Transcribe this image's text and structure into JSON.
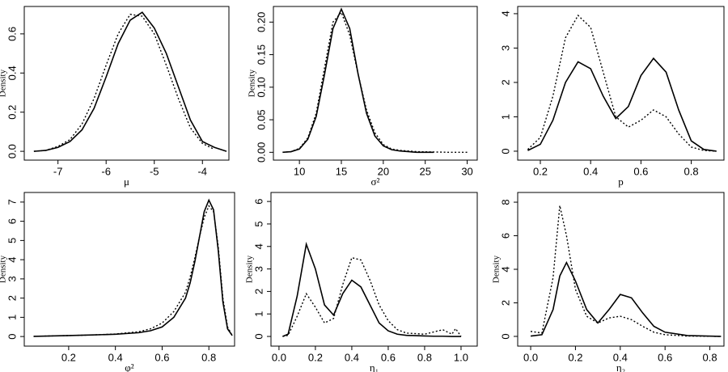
{
  "chart_data": [
    {
      "type": "line",
      "xlabel": "μ",
      "ylabel": "Density",
      "x": [
        -7.5,
        -7.25,
        -7,
        -6.75,
        -6.5,
        -6.25,
        -6,
        -5.75,
        -5.5,
        -5.25,
        -5,
        -4.75,
        -4.5,
        -4.25,
        -4,
        -3.75,
        -3.5
      ],
      "series": [
        {
          "color": "#000000",
          "dash": "solid",
          "values": [
            0,
            0.005,
            0.02,
            0.05,
            0.11,
            0.22,
            0.38,
            0.55,
            0.67,
            0.71,
            0.63,
            0.5,
            0.33,
            0.16,
            0.05,
            0.02,
            0.0
          ]
        },
        {
          "color": "#000000",
          "dash": "dotted",
          "values": [
            0,
            0.005,
            0.025,
            0.06,
            0.14,
            0.27,
            0.44,
            0.6,
            0.7,
            0.69,
            0.6,
            0.44,
            0.27,
            0.12,
            0.04,
            0.01,
            null
          ]
        }
      ],
      "xlim": [
        -7.7,
        -3.45
      ],
      "ylim": [
        -0.045,
        0.74
      ],
      "xticks": [
        -7,
        -6,
        -5,
        -4
      ],
      "yticks": [
        {
          "value": 0,
          "label": "0.0"
        },
        0.2,
        0.4,
        0.6
      ]
    },
    {
      "type": "line",
      "xlabel": "σ²",
      "ylabel": "Density",
      "x": [
        8,
        9,
        10,
        11,
        12,
        13,
        14,
        15,
        16,
        17,
        18,
        19,
        20,
        21,
        22,
        24,
        26,
        28,
        30
      ],
      "series": [
        {
          "color": "#000000",
          "dash": "solid",
          "values": [
            0,
            0.001,
            0.005,
            0.02,
            0.055,
            0.12,
            0.19,
            0.22,
            0.19,
            0.12,
            0.06,
            0.025,
            0.01,
            0.004,
            0.002,
            0,
            0,
            null,
            null
          ]
        },
        {
          "color": "#000000",
          "dash": "dotted",
          "values": [
            0,
            0.001,
            0.006,
            0.022,
            0.06,
            0.13,
            0.2,
            0.215,
            0.18,
            0.12,
            0.065,
            0.03,
            0.012,
            0.005,
            0.003,
            0.001,
            0.0005,
            0,
            0
          ]
        }
      ],
      "xlim": [
        6.9,
        31.2
      ],
      "ylim": [
        -0.012,
        0.224
      ],
      "xticks": [
        10,
        15,
        20,
        25,
        30
      ],
      "yticks": [
        {
          "value": 0,
          "label": "0.00"
        },
        0.05,
        {
          "value": 0.1,
          "label": "0.10"
        },
        0.15,
        {
          "value": 0.2,
          "label": "0.20"
        }
      ]
    },
    {
      "type": "line",
      "xlabel": "p",
      "x": [
        0.15,
        0.2,
        0.25,
        0.3,
        0.35,
        0.4,
        0.45,
        0.5,
        0.55,
        0.6,
        0.65,
        0.7,
        0.75,
        0.8,
        0.85,
        0.9
      ],
      "series": [
        {
          "color": "#000000",
          "dash": "solid",
          "values": [
            0.02,
            0.2,
            0.9,
            2.0,
            2.6,
            2.4,
            1.6,
            0.95,
            1.3,
            2.2,
            2.7,
            2.3,
            1.2,
            0.3,
            0.05,
            0
          ]
        },
        {
          "color": "#000000",
          "dash": "dotted",
          "values": [
            0.05,
            0.4,
            1.6,
            3.3,
            3.95,
            3.6,
            2.3,
            1.0,
            0.7,
            0.9,
            1.2,
            1.0,
            0.5,
            0.12,
            0.02,
            0
          ]
        }
      ],
      "xlim": [
        0.11,
        0.93
      ],
      "ylim": [
        -0.26,
        4.21
      ],
      "xticks": [
        0.2,
        0.4,
        0.6,
        0.8
      ],
      "yticks": [
        0,
        1,
        2,
        3,
        4
      ]
    },
    {
      "type": "line",
      "xlabel": "φ²",
      "ylabel": "Density",
      "x": [
        0.05,
        0.2,
        0.3,
        0.4,
        0.5,
        0.55,
        0.6,
        0.65,
        0.7,
        0.72,
        0.74,
        0.76,
        0.78,
        0.8,
        0.82,
        0.84,
        0.86,
        0.88,
        0.9
      ],
      "series": [
        {
          "color": "#000000",
          "dash": "solid",
          "values": [
            0.01,
            0.05,
            0.08,
            0.12,
            0.2,
            0.3,
            0.5,
            1.0,
            2.0,
            2.8,
            3.9,
            5.2,
            6.5,
            7.1,
            6.6,
            4.5,
            1.8,
            0.4,
            0.05
          ]
        },
        {
          "color": "#000000",
          "dash": "dotted",
          "values": [
            0.01,
            0.05,
            0.08,
            0.13,
            0.25,
            0.4,
            0.7,
            1.3,
            2.3,
            3.1,
            4.1,
            5.2,
            6.2,
            6.8,
            6.5,
            4.7,
            2.0,
            0.5,
            0.05
          ]
        }
      ],
      "xlim": [
        0.01,
        0.91
      ],
      "ylim": [
        -0.5,
        7.5
      ],
      "xticks": [
        0.2,
        0.4,
        0.6,
        0.8
      ],
      "yticks": [
        0,
        1,
        2,
        3,
        4,
        5,
        6,
        7
      ]
    },
    {
      "type": "line",
      "xlabel": "η₁",
      "ylabel": "Density",
      "x": [
        0.02,
        0.05,
        0.1,
        0.15,
        0.2,
        0.25,
        0.3,
        0.35,
        0.4,
        0.45,
        0.5,
        0.55,
        0.6,
        0.65,
        0.7,
        0.8,
        0.85,
        0.9,
        0.95,
        0.97,
        1.0
      ],
      "series": [
        {
          "color": "#000000",
          "dash": "solid",
          "values": [
            0,
            0.1,
            1.8,
            4.1,
            3.0,
            1.4,
            0.95,
            1.9,
            2.5,
            2.2,
            1.4,
            0.6,
            0.25,
            0.1,
            0.05,
            0.02,
            0.01,
            0.01,
            0,
            0,
            0
          ]
        },
        {
          "color": "#000000",
          "dash": "dotted",
          "values": [
            0,
            0.05,
            0.9,
            1.9,
            1.3,
            0.6,
            0.8,
            2.3,
            3.5,
            3.4,
            2.5,
            1.4,
            0.7,
            0.3,
            0.15,
            0.1,
            0.2,
            0.3,
            0.1,
            0.35,
            0
          ]
        }
      ],
      "xlim": [
        -0.044,
        1.089
      ],
      "ylim": [
        -0.43,
        6.4
      ],
      "xticks": [
        {
          "value": 0,
          "label": "0.0"
        },
        0.2,
        0.4,
        0.6,
        0.8,
        {
          "value": 1,
          "label": "1.0"
        }
      ],
      "yticks": [
        0,
        1,
        2,
        3,
        4,
        5,
        6
      ]
    },
    {
      "type": "line",
      "xlabel": "η₂",
      "ylabel": "Density",
      "x": [
        0,
        0.05,
        0.1,
        0.13,
        0.16,
        0.2,
        0.25,
        0.3,
        0.35,
        0.4,
        0.45,
        0.5,
        0.55,
        0.6,
        0.7,
        0.85
      ],
      "series": [
        {
          "color": "#000000",
          "dash": "solid",
          "values": [
            0.02,
            0.1,
            1.6,
            3.6,
            4.4,
            3.3,
            1.6,
            0.8,
            1.6,
            2.5,
            2.3,
            1.4,
            0.6,
            0.25,
            0.05,
            0
          ]
        },
        {
          "color": "#000000",
          "dash": "dotted",
          "values": [
            0.3,
            0.2,
            3.5,
            7.8,
            6.0,
            2.8,
            1.2,
            0.8,
            1.1,
            1.2,
            1.0,
            0.6,
            0.25,
            0.1,
            0.02,
            0
          ]
        }
      ],
      "xlim": [
        -0.058,
        0.863
      ],
      "ylim": [
        -0.58,
        8.58
      ],
      "xticks": [
        {
          "value": 0,
          "label": "0.0"
        },
        0.2,
        0.4,
        0.6,
        0.8
      ],
      "yticks": [
        0,
        2,
        4,
        6,
        8
      ]
    }
  ]
}
